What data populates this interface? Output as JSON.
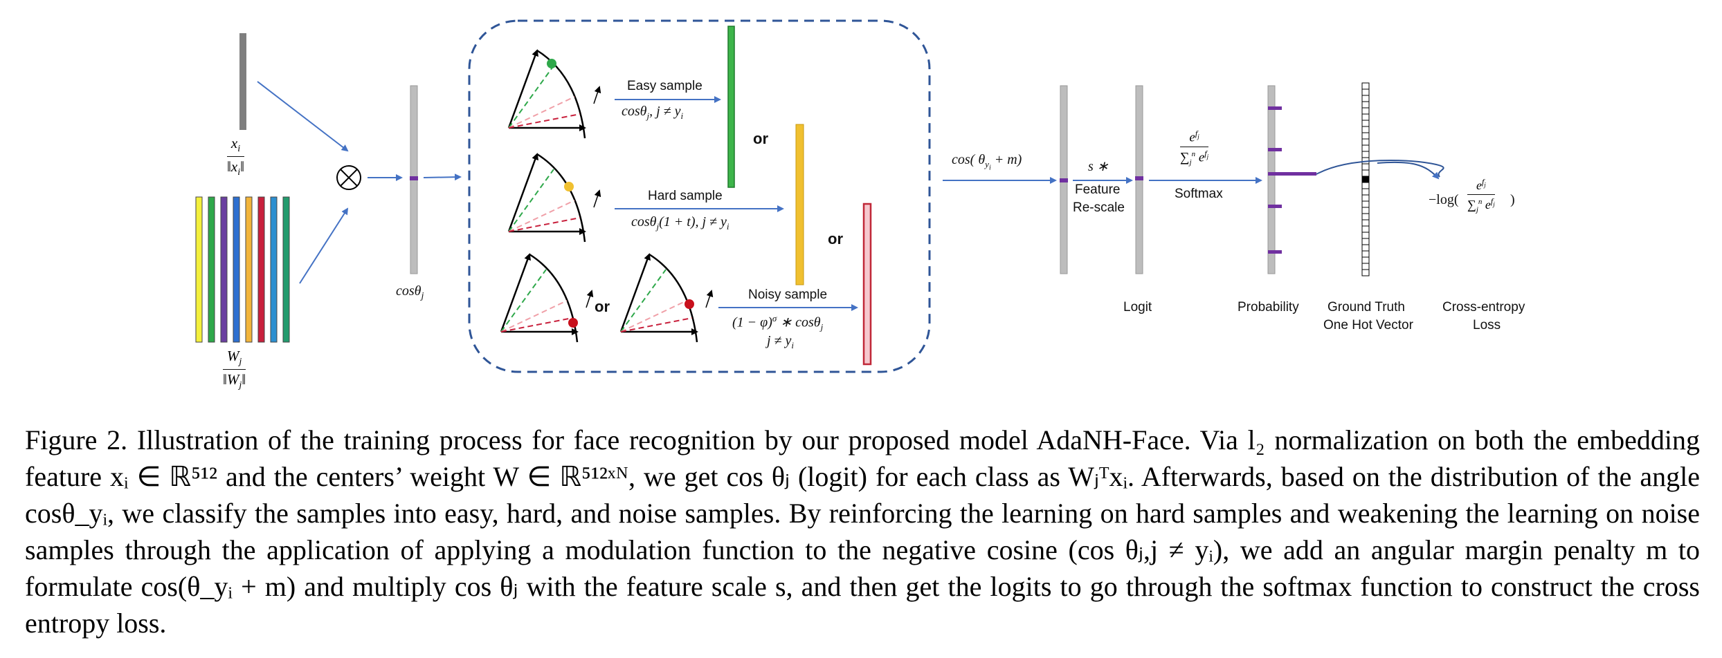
{
  "figure": {
    "input": {
      "xi_num": "x",
      "xi_sub": "i",
      "xi_den": "‖x",
      "xi_den_sub": "i",
      "wj_num": "W",
      "wj_sub": "j",
      "wj_den": "‖W",
      "wj_den_sub": "j"
    },
    "cos_theta_label": "cosθ",
    "cos_theta_sub": "j",
    "easy_label": "Easy sample",
    "easy_formula": "cosθ",
    "easy_formula_rest": ", j ≠ y",
    "hard_label": "Hard sample",
    "hard_formula": "cosθ",
    "hard_formula_rest": "(1 + t), j ≠ y",
    "noisy_label": "Noisy sample",
    "noisy_formula": "(1 − φ)",
    "noisy_formula_sup": "σ",
    "noisy_formula_rest": " ∗ cosθ",
    "noisy_formula2": "j ≠ y",
    "or_labels": [
      "or",
      "or",
      "or"
    ],
    "margin_formula": "cos( θ",
    "margin_formula_sub": "y",
    "margin_formula_rest": " + m)",
    "scale_symbol": "s ∗",
    "feature_rescale": [
      "Feature",
      "Re-scale"
    ],
    "softmax_label": "Softmax",
    "softmax_num": "e",
    "softmax_den": "∑",
    "loss_formula": "−log(",
    "col_labels": {
      "logit": "Logit",
      "probability": "Probability",
      "ground_truth": [
        "Ground Truth",
        "One Hot Vector"
      ],
      "loss": [
        "Cross-entropy",
        "Loss"
      ]
    },
    "colors": {
      "arrow": "#4472C4",
      "dashed_box": "#2F5597",
      "easy_bar": "#3DB54A",
      "hard_bar": "#F0C030",
      "noisy_bar": "#D04050",
      "purple": "#7030A0",
      "gray_bar": "#BDBDBD",
      "weight_bars": [
        "#F4F03C",
        "#2EA84A",
        "#6A3FA0",
        "#2D6FD0",
        "#F2B43A",
        "#C8203C",
        "#2C8FD0",
        "#239B6E"
      ]
    }
  },
  "caption": "Figure 2. Illustration of the training process for face recognition by our proposed model AdaNH-Face. Via l₂ normalization on both the embedding feature xᵢ ∈ ℝ⁵¹² and the centers’ weight W ∈ ℝ⁵¹²ˣᴺ, we get cos θⱼ (logit) for each class as Wⱼᵀxᵢ. Afterwards, based on the distribution of the angle cosθ_yᵢ, we classify the samples into easy, hard, and noise samples. By reinforcing the learning on hard samples and weakening the learning on noise samples through the application of applying a modulation function to the negative cosine (cos θⱼ,j ≠ yᵢ), we add an angular margin penalty m to formulate cos(θ_yᵢ + m) and multiply cos θⱼ with the feature scale s, and then get the logits to go through the softmax function to construct the cross entropy loss."
}
